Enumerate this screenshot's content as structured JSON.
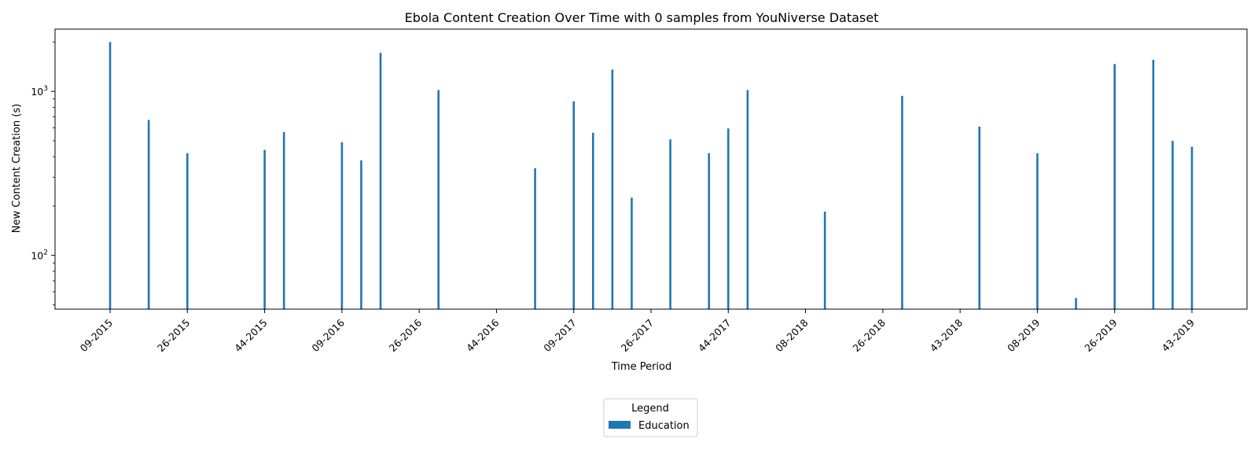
{
  "chart_data": {
    "type": "bar",
    "title": "Ebola Content Creation Over Time with 0 samples from YouNiverse Dataset",
    "xlabel": "Time Period",
    "ylabel": "New Content Creation (s)",
    "yscale": "log",
    "ylim": [
      47,
      2400
    ],
    "y_ticks": [
      {
        "value": 100,
        "base": "10",
        "exp": "2"
      },
      {
        "value": 1000,
        "base": "10",
        "exp": "3"
      }
    ],
    "x_ticks": [
      "09-2015",
      "26-2015",
      "44-2015",
      "09-2016",
      "26-2016",
      "44-2016",
      "09-2017",
      "26-2017",
      "44-2017",
      "08-2018",
      "26-2018",
      "43-2018",
      "08-2019",
      "26-2019",
      "43-2019"
    ],
    "x_tick_positions": [
      0,
      4,
      8,
      12,
      16,
      20,
      24,
      28,
      32,
      36,
      40,
      44,
      48,
      52,
      56
    ],
    "x_range": [
      -2.85,
      58.85
    ],
    "legend": {
      "title": "Legend",
      "placement": "bottom-center"
    },
    "series": [
      {
        "name": "Education",
        "color": "#1f77b4",
        "points": [
          {
            "x": 0,
            "y": 2000
          },
          {
            "x": 2,
            "y": 670
          },
          {
            "x": 4,
            "y": 420
          },
          {
            "x": 8,
            "y": 440
          },
          {
            "x": 9,
            "y": 565
          },
          {
            "x": 12,
            "y": 490
          },
          {
            "x": 13,
            "y": 380
          },
          {
            "x": 14,
            "y": 1720
          },
          {
            "x": 17,
            "y": 1020
          },
          {
            "x": 22,
            "y": 340
          },
          {
            "x": 24,
            "y": 870
          },
          {
            "x": 25,
            "y": 560
          },
          {
            "x": 26,
            "y": 1360
          },
          {
            "x": 27,
            "y": 225
          },
          {
            "x": 29,
            "y": 510
          },
          {
            "x": 31,
            "y": 420
          },
          {
            "x": 32,
            "y": 595
          },
          {
            "x": 33,
            "y": 1020
          },
          {
            "x": 37,
            "y": 185
          },
          {
            "x": 41,
            "y": 940
          },
          {
            "x": 45,
            "y": 610
          },
          {
            "x": 48,
            "y": 420
          },
          {
            "x": 50,
            "y": 55
          },
          {
            "x": 52,
            "y": 1470
          },
          {
            "x": 54,
            "y": 1560
          },
          {
            "x": 55,
            "y": 500
          },
          {
            "x": 56,
            "y": 460
          }
        ]
      }
    ]
  }
}
